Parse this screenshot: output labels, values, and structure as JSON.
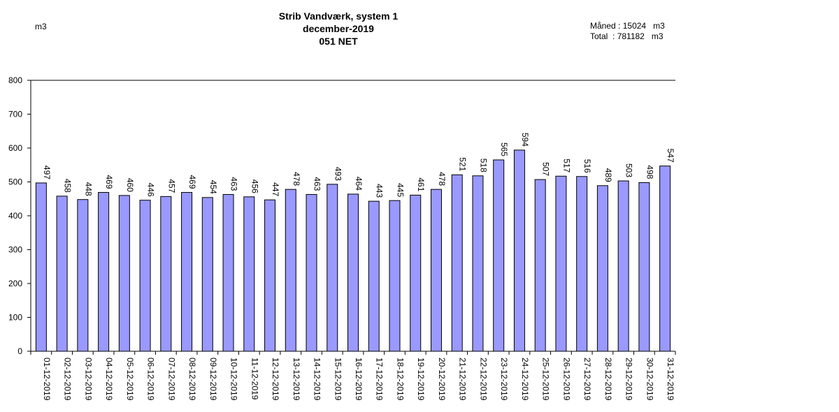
{
  "header": {
    "title_line1": "Strib Vandværk, system 1",
    "title_line2": "december-2019",
    "title_line3": "051 NET",
    "unit_label": "m3"
  },
  "stats": {
    "month_label": "Måned",
    "month_value": "15024",
    "month_unit": "m3",
    "total_label": "Total",
    "total_value": "781182",
    "total_unit": "m3"
  },
  "colors": {
    "bar_fill": "#9999ff",
    "bar_stroke": "#000000",
    "axis": "#000000"
  },
  "chart_data": {
    "type": "bar",
    "title": "Strib Vandværk, system 1",
    "subtitle": "december-2019 051 NET",
    "ylabel": "m3",
    "xlabel": "",
    "ylim": [
      0,
      800
    ],
    "yticks": [
      0,
      100,
      200,
      300,
      400,
      500,
      600,
      700,
      800
    ],
    "grid": false,
    "legend": "none",
    "categories": [
      "01-12-2019",
      "02-12-2019",
      "03-12-2019",
      "04-12-2019",
      "05-12-2019",
      "06-12-2019",
      "07-12-2019",
      "08-12-2019",
      "09-12-2019",
      "10-12-2019",
      "11-12-2019",
      "12-12-2019",
      "13-12-2019",
      "14-12-2019",
      "15-12-2019",
      "16-12-2019",
      "17-12-2019",
      "18-12-2019",
      "19-12-2019",
      "20-12-2019",
      "21-12-2019",
      "22-12-2019",
      "23-12-2019",
      "24-12-2019",
      "25-12-2019",
      "26-12-2019",
      "27-12-2019",
      "28-12-2019",
      "29-12-2019",
      "30-12-2019",
      "31-12-2019"
    ],
    "values": [
      497,
      458,
      448,
      469,
      460,
      446,
      457,
      469,
      454,
      463,
      456,
      447,
      478,
      463,
      493,
      464,
      443,
      445,
      461,
      478,
      521,
      518,
      565,
      594,
      507,
      517,
      516,
      489,
      503,
      498,
      547
    ]
  }
}
